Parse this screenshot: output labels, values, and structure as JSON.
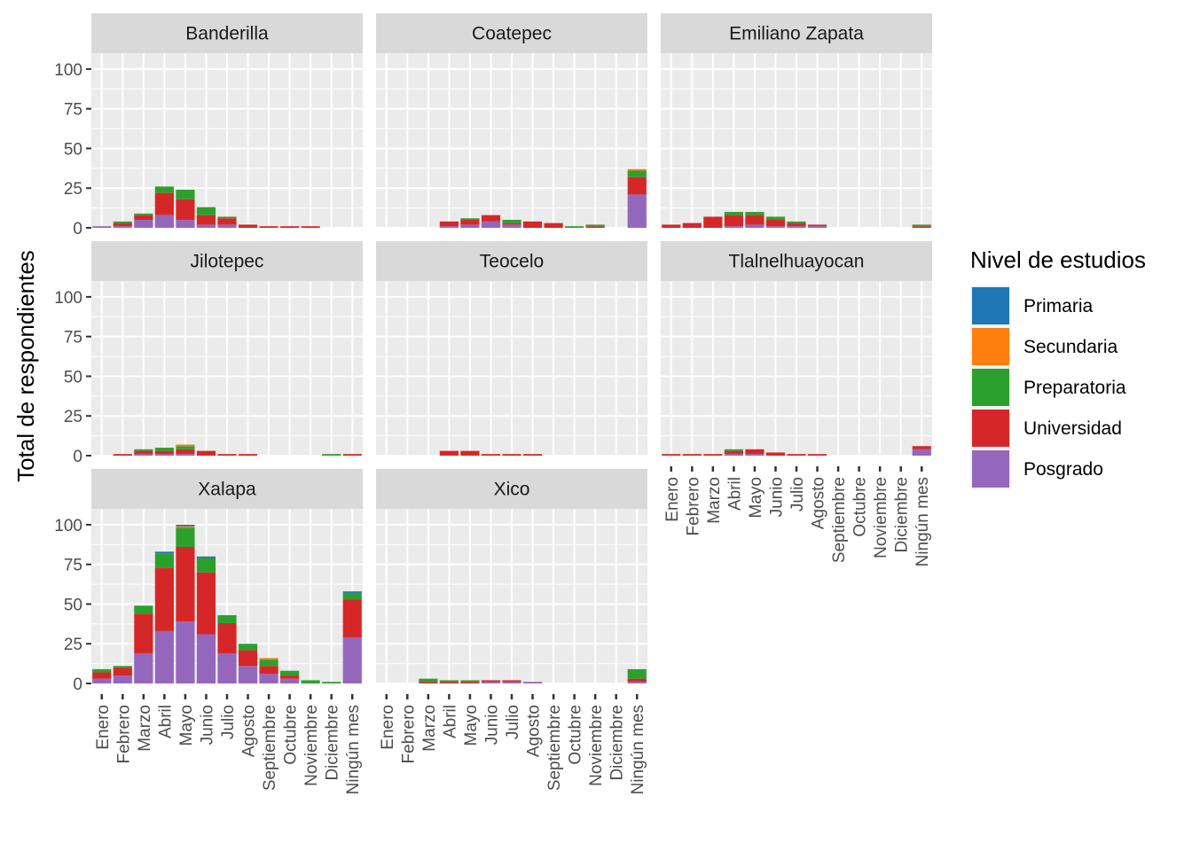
{
  "chart_data": {
    "type": "bar",
    "stacked": true,
    "faceted": true,
    "ylabel": "Total de respondientes",
    "xlabel": "",
    "ylim": [
      0,
      110
    ],
    "yticks": [
      0,
      25,
      50,
      75,
      100
    ],
    "categories": [
      "Enero",
      "Febrero",
      "Marzo",
      "Abril",
      "Mayo",
      "Junio",
      "Julio",
      "Agosto",
      "Septiembre",
      "Octubre",
      "Noviembre",
      "Diciembre",
      "Ningún mes"
    ],
    "legend": {
      "title": "Nivel de estudios",
      "position": "right",
      "items": [
        {
          "name": "Primaria",
          "color": "#1f77b4"
        },
        {
          "name": "Secundaria",
          "color": "#ff7f0e"
        },
        {
          "name": "Preparatoria",
          "color": "#2ca02c"
        },
        {
          "name": "Universidad",
          "color": "#d62728"
        },
        {
          "name": "Posgrado",
          "color": "#9467bd"
        }
      ]
    },
    "grid": true,
    "panels": [
      {
        "title": "Banderilla",
        "series": {
          "Posgrado": [
            1,
            1,
            5,
            8,
            5,
            2,
            2,
            0,
            0,
            0,
            0,
            0,
            0
          ],
          "Universidad": [
            0,
            2,
            3,
            14,
            13,
            6,
            4,
            2,
            1,
            1,
            1,
            0,
            0
          ],
          "Preparatoria": [
            0,
            1,
            1,
            4,
            6,
            5,
            1,
            0,
            0,
            0,
            0,
            0,
            0
          ],
          "Secundaria": [
            0,
            0,
            0,
            0,
            0,
            0,
            0,
            0,
            0,
            0,
            0,
            0,
            0
          ],
          "Primaria": [
            0,
            0,
            0,
            0,
            0,
            0,
            0,
            0,
            0,
            0,
            0,
            0,
            0
          ]
        }
      },
      {
        "title": "Coatepec",
        "series": {
          "Posgrado": [
            0,
            0,
            0,
            1,
            2,
            4,
            2,
            0,
            0,
            0,
            0,
            0,
            21
          ],
          "Universidad": [
            0,
            0,
            0,
            3,
            3,
            4,
            1,
            4,
            3,
            0,
            1,
            0,
            11
          ],
          "Preparatoria": [
            0,
            0,
            0,
            0,
            1,
            0,
            2,
            0,
            0,
            1,
            1,
            0,
            4
          ],
          "Secundaria": [
            0,
            0,
            0,
            0,
            0,
            0,
            0,
            0,
            0,
            0,
            0,
            0,
            1
          ],
          "Primaria": [
            0,
            0,
            0,
            0,
            0,
            0,
            0,
            0,
            0,
            0,
            0,
            0,
            0
          ]
        }
      },
      {
        "title": "Emiliano Zapata",
        "series": {
          "Posgrado": [
            0,
            0,
            0,
            1,
            2,
            1,
            1,
            1,
            0,
            0,
            0,
            0,
            0
          ],
          "Universidad": [
            2,
            3,
            7,
            7,
            6,
            4,
            2,
            1,
            0,
            0,
            0,
            0,
            1
          ],
          "Preparatoria": [
            0,
            0,
            0,
            2,
            2,
            2,
            1,
            0,
            0,
            0,
            0,
            0,
            1
          ],
          "Secundaria": [
            0,
            0,
            0,
            0,
            0,
            0,
            0,
            0,
            0,
            0,
            0,
            0,
            0
          ],
          "Primaria": [
            0,
            0,
            0,
            0,
            0,
            0,
            0,
            0,
            0,
            0,
            0,
            0,
            0
          ]
        }
      },
      {
        "title": "Jilotepec",
        "series": {
          "Posgrado": [
            0,
            0,
            1,
            1,
            1,
            0,
            0,
            0,
            0,
            0,
            0,
            0,
            0
          ],
          "Universidad": [
            0,
            1,
            2,
            2,
            3,
            3,
            1,
            1,
            0,
            0,
            0,
            0,
            1
          ],
          "Preparatoria": [
            0,
            0,
            1,
            2,
            2,
            0,
            0,
            0,
            0,
            0,
            0,
            1,
            0
          ],
          "Secundaria": [
            0,
            0,
            0,
            0,
            1,
            0,
            0,
            0,
            0,
            0,
            0,
            0,
            0
          ],
          "Primaria": [
            0,
            0,
            0,
            0,
            0,
            0,
            0,
            0,
            0,
            0,
            0,
            0,
            0
          ]
        }
      },
      {
        "title": "Teocelo",
        "series": {
          "Posgrado": [
            0,
            0,
            0,
            0,
            0,
            0,
            0,
            0,
            0,
            0,
            0,
            0,
            0
          ],
          "Universidad": [
            0,
            0,
            0,
            3,
            3,
            1,
            1,
            1,
            0,
            0,
            0,
            0,
            0
          ],
          "Preparatoria": [
            0,
            0,
            0,
            0,
            0,
            0,
            0,
            0,
            0,
            0,
            0,
            0,
            0
          ],
          "Secundaria": [
            0,
            0,
            0,
            0,
            0,
            0,
            0,
            0,
            0,
            0,
            0,
            0,
            0
          ],
          "Primaria": [
            0,
            0,
            0,
            0,
            0,
            0,
            0,
            0,
            0,
            0,
            0,
            0,
            0
          ]
        }
      },
      {
        "title": "Tlalnelhuayocan",
        "series": {
          "Posgrado": [
            0,
            0,
            0,
            1,
            1,
            0,
            0,
            0,
            0,
            0,
            0,
            0,
            4
          ],
          "Universidad": [
            1,
            1,
            1,
            2,
            3,
            2,
            1,
            1,
            0,
            0,
            0,
            0,
            2
          ],
          "Preparatoria": [
            0,
            0,
            0,
            1,
            0,
            0,
            0,
            0,
            0,
            0,
            0,
            0,
            0
          ],
          "Secundaria": [
            0,
            0,
            0,
            0,
            0,
            0,
            0,
            0,
            0,
            0,
            0,
            0,
            0
          ],
          "Primaria": [
            0,
            0,
            0,
            0,
            0,
            0,
            0,
            0,
            0,
            0,
            0,
            0,
            0
          ]
        }
      },
      {
        "title": "Xalapa",
        "series": {
          "Posgrado": [
            3,
            5,
            19,
            33,
            39,
            31,
            19,
            11,
            6,
            3,
            0,
            0,
            29
          ],
          "Universidad": [
            4,
            5,
            25,
            40,
            47,
            39,
            19,
            10,
            5,
            2,
            0,
            0,
            24
          ],
          "Preparatoria": [
            2,
            1,
            5,
            9,
            12,
            9,
            5,
            4,
            4,
            3,
            2,
            1,
            4
          ],
          "Secundaria": [
            0,
            0,
            0,
            0,
            1,
            0,
            0,
            0,
            1,
            0,
            0,
            0,
            0
          ],
          "Primaria": [
            0,
            0,
            0,
            1,
            1,
            1,
            0,
            0,
            0,
            0,
            0,
            0,
            1
          ]
        }
      },
      {
        "title": "Xico",
        "series": {
          "Posgrado": [
            0,
            0,
            0,
            0,
            0,
            1,
            1,
            1,
            0,
            0,
            0,
            0,
            1
          ],
          "Universidad": [
            0,
            0,
            1,
            1,
            1,
            1,
            1,
            0,
            0,
            0,
            0,
            0,
            2
          ],
          "Preparatoria": [
            0,
            0,
            2,
            1,
            1,
            0,
            0,
            0,
            0,
            0,
            0,
            0,
            6
          ],
          "Secundaria": [
            0,
            0,
            0,
            0,
            0,
            0,
            0,
            0,
            0,
            0,
            0,
            0,
            0
          ],
          "Primaria": [
            0,
            0,
            0,
            0,
            0,
            0,
            0,
            0,
            0,
            0,
            0,
            0,
            0
          ]
        }
      }
    ]
  }
}
